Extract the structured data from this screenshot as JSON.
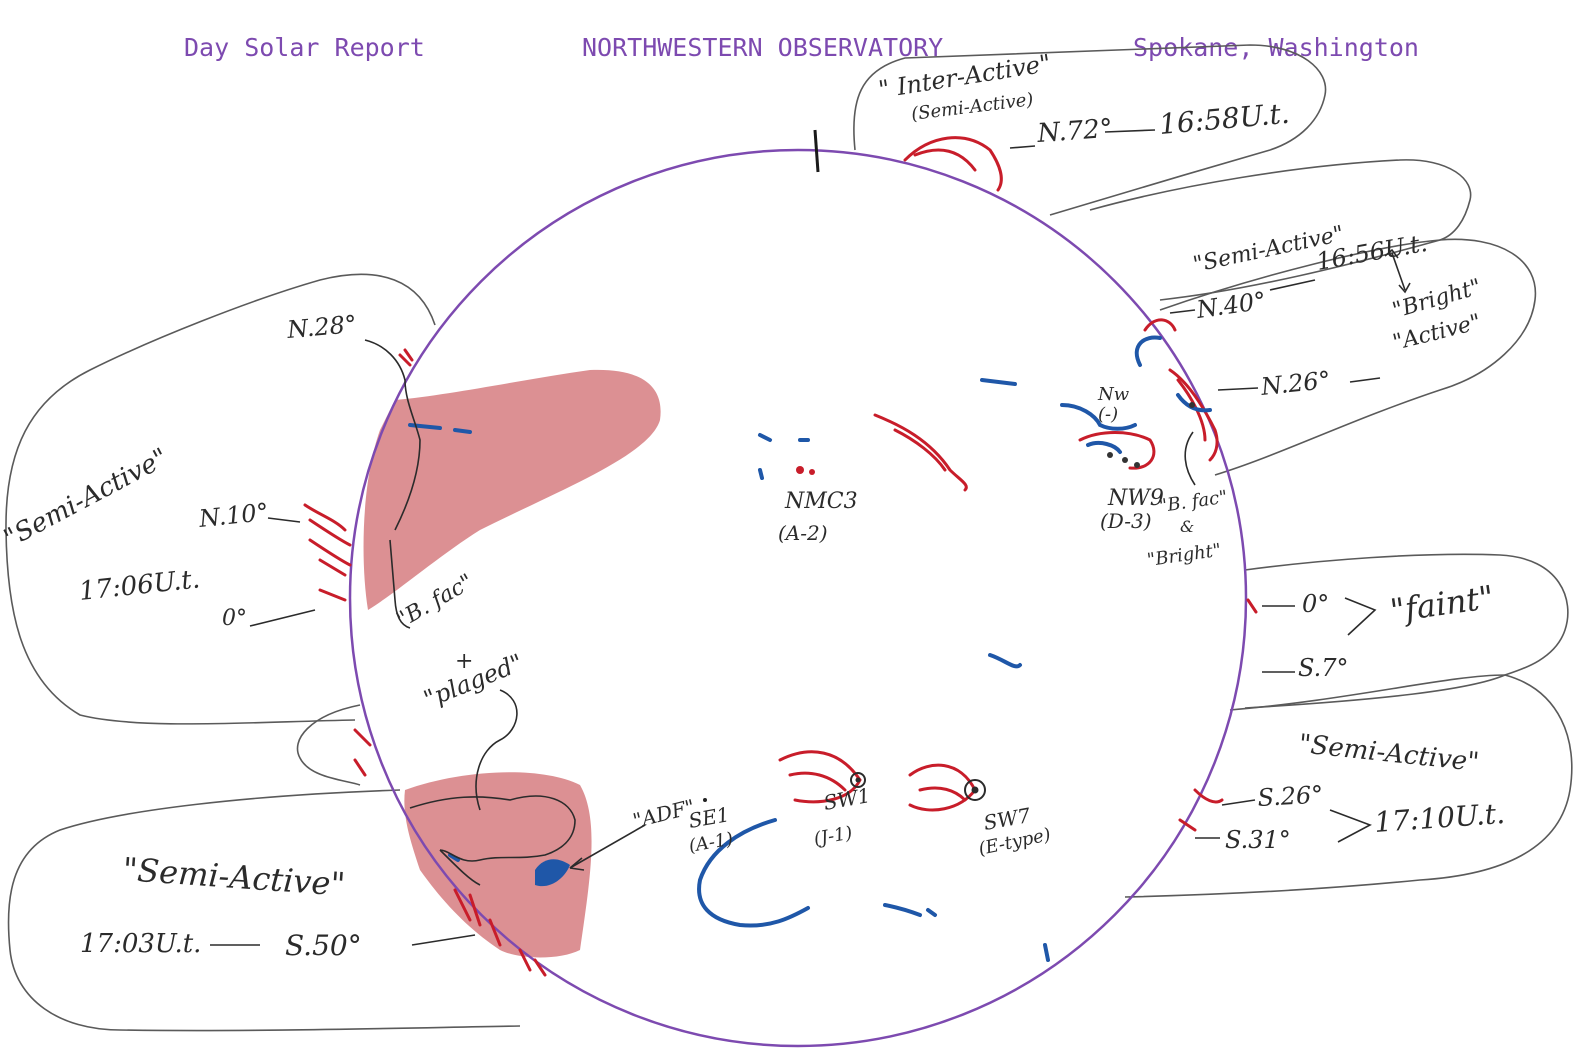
{
  "header": {
    "left": "Day Solar Report",
    "center": "NORTHWESTERN OBSERVATORY",
    "right": "Spokane, Washington"
  },
  "colors": {
    "header_ink": "#7d4ab0",
    "limb": "#7d4ab0",
    "plage_red": "#c81d2a",
    "filament_blue": "#1f57a8",
    "pencil": "#2b2b2b"
  },
  "limb_groups": {
    "top": {
      "status": "\" Inter-Active\"",
      "status_sub": "(Semi-Active)",
      "lat": "N.72°",
      "time": "16:58U.t."
    },
    "upper_right": {
      "status": "\"Semi-Active\"",
      "lat": "N.40°",
      "time": "16:56U.t."
    },
    "right_bright": {
      "label1": "\"Bright\"",
      "label2": "\"Active\"",
      "lat": "N.26°"
    },
    "right_faint": {
      "lat1": "0°",
      "lat2": "S.7°",
      "desc": "\"faint\""
    },
    "lower_right": {
      "status": "\"Semi-Active\"",
      "lat1": "S.26°",
      "lat2": "S.31°",
      "time": "17:10U.t."
    },
    "left": {
      "status": "\"Semi-Active\"",
      "lat1": "N.28°",
      "lat2": "N.10°",
      "lat3": "0°",
      "time": "17:06U.t."
    },
    "lower_left": {
      "status": "\"Semi-Active\"",
      "time": "17:03U.t.",
      "lat": "S.50°"
    }
  },
  "disk_labels": {
    "nmc3": "NMC3",
    "nmc3_class": "(A-2)",
    "nw": "Nw",
    "nw_class": "(-)",
    "nw9": "NW9",
    "nw9_class": "(D-3)",
    "bfac_right": "\"B. fac\"",
    "amp_right": "&",
    "bright_right": "\"Bright\"",
    "bfac_left": "\"B. fac\"",
    "plus_left": "+",
    "plaged": "\"plaged\"",
    "adf": "\"ADF\"",
    "se1": "SE1",
    "se1_class": "(A-1)",
    "sw1": "SW1",
    "sw1_class": "(J-1)",
    "sw7": "SW7",
    "sw7_class": "(E-type)"
  }
}
